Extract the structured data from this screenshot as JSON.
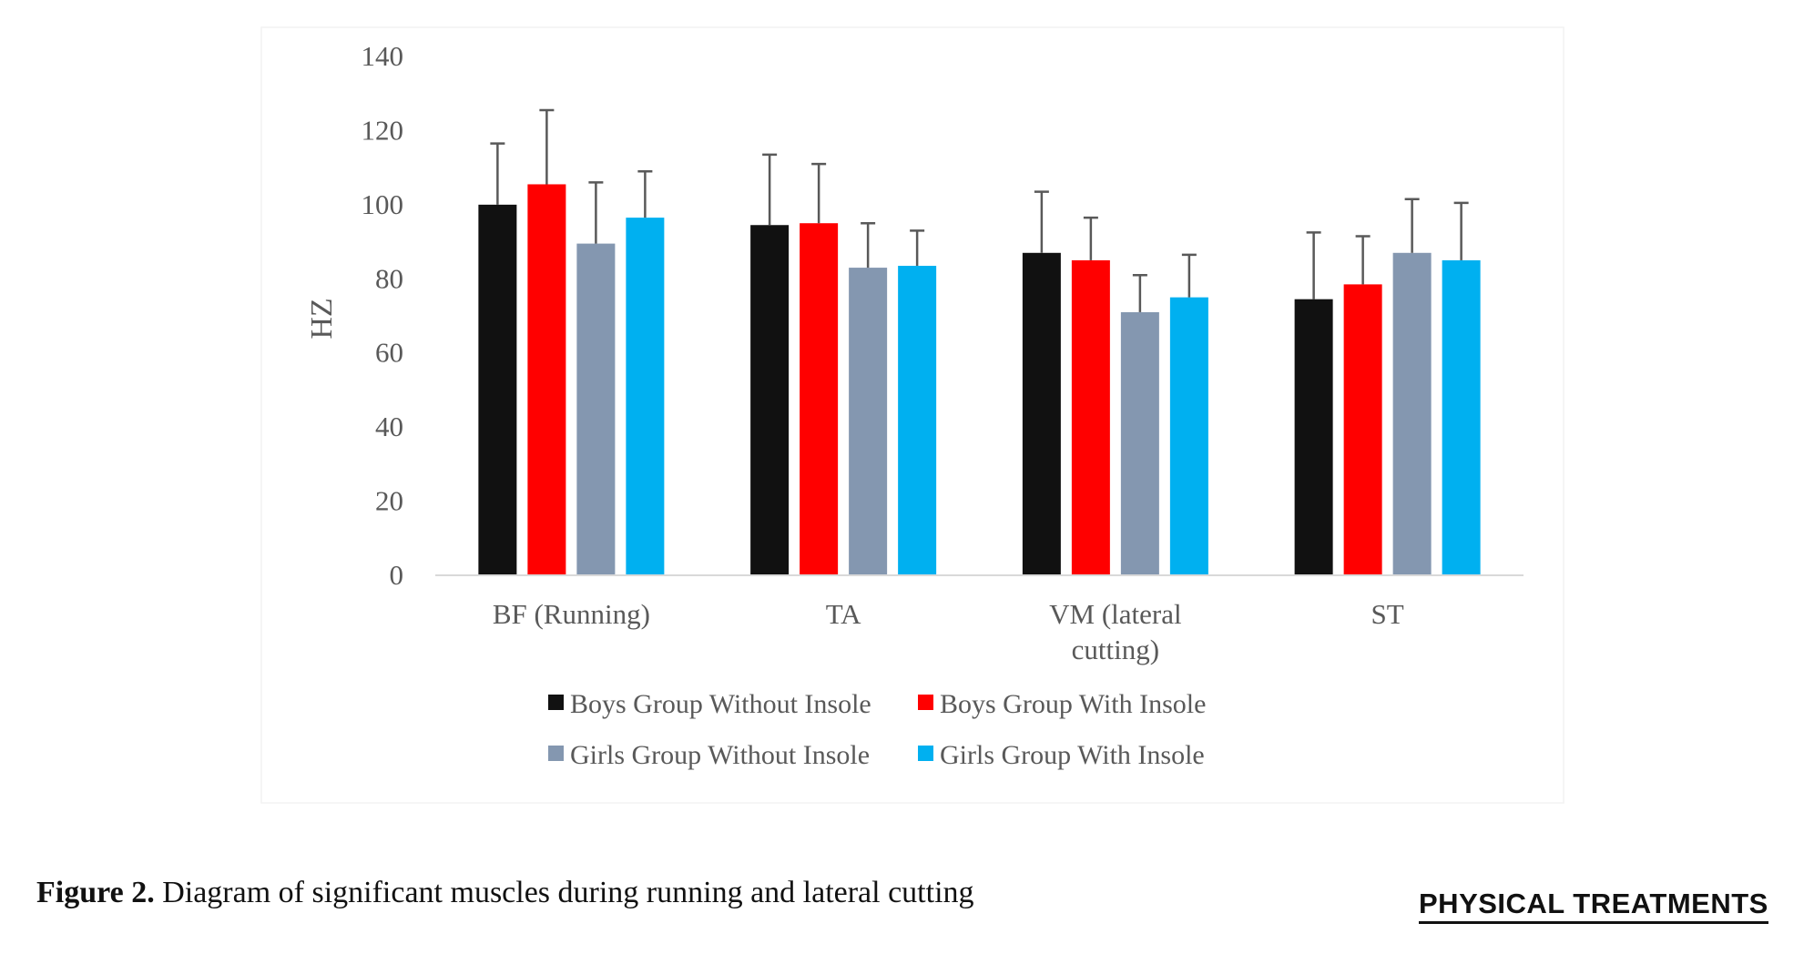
{
  "caption": {
    "label": "Figure 2.",
    "text": "Diagram of significant muscles during running and lateral cutting"
  },
  "logo": {
    "text": "PHYSICAL TREATMENTS"
  },
  "chart_data": {
    "type": "bar",
    "ylabel": "HZ",
    "ylim": [
      0,
      140
    ],
    "yticks": [
      0,
      20,
      40,
      60,
      80,
      100,
      120,
      140
    ],
    "grid": false,
    "legend_position": "bottom",
    "categories": [
      [
        "BF (Running)"
      ],
      [
        "TA"
      ],
      [
        "VM (lateral",
        "cutting)"
      ],
      [
        "ST"
      ]
    ],
    "series": [
      {
        "name": "Boys Group Without Insole",
        "color": "#111111",
        "values": [
          100,
          94.5,
          87,
          74.5
        ],
        "error": [
          16.5,
          19,
          16.5,
          18
        ]
      },
      {
        "name": "Boys Group With Insole",
        "color": "#ff0000",
        "values": [
          105.5,
          95,
          85,
          78.5
        ],
        "error": [
          20,
          16,
          11.5,
          13
        ]
      },
      {
        "name": "Girls Group Without Insole",
        "color": "#8497b0",
        "values": [
          89.5,
          83,
          71,
          87
        ],
        "error": [
          16.5,
          12,
          10,
          14.5
        ]
      },
      {
        "name": "Girls Group With Insole",
        "color": "#00b0f0",
        "values": [
          96.5,
          83.5,
          75,
          85
        ],
        "error": [
          12.5,
          9.5,
          11.5,
          15.5
        ]
      }
    ]
  }
}
